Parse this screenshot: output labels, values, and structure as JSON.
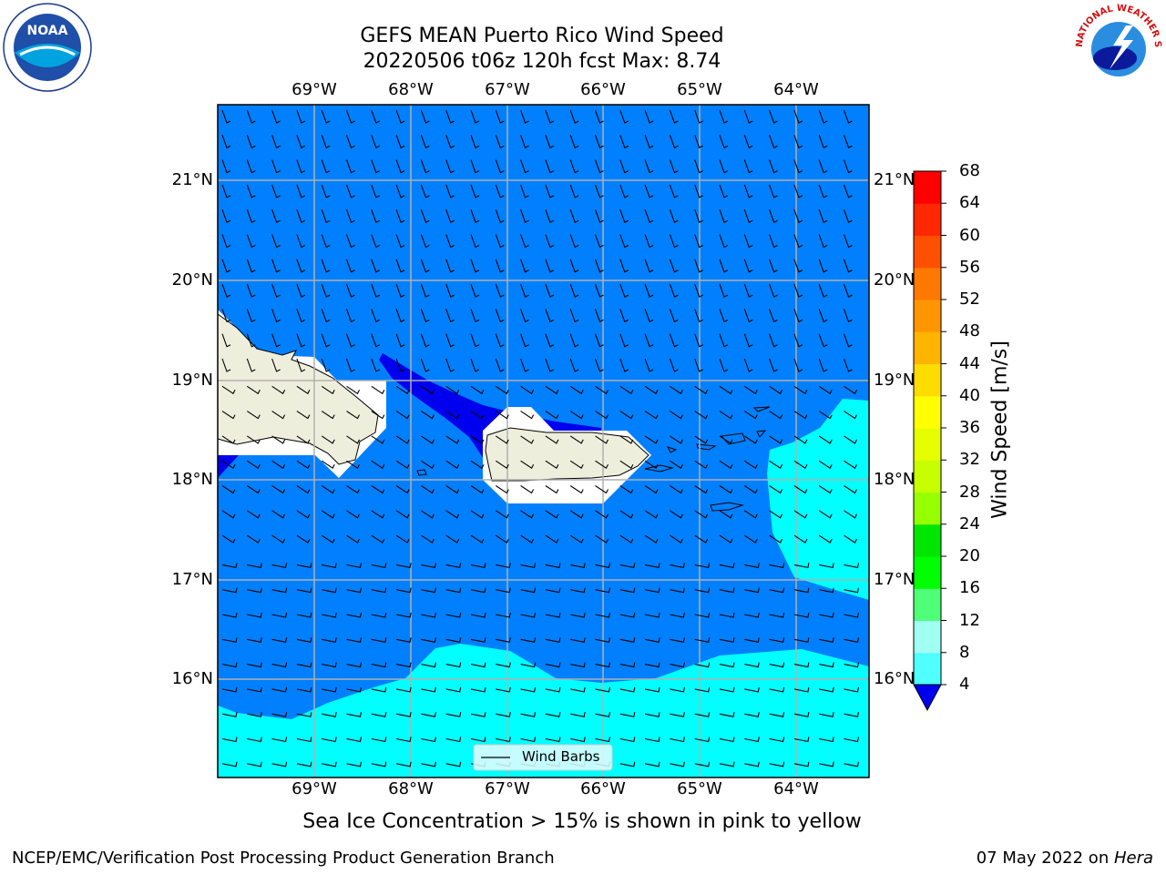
{
  "title": {
    "line1": "GEFS MEAN Puerto Rico Wind Speed",
    "line2": "20220506 t06z 120h fcst   Max: 8.74"
  },
  "map": {
    "lon_labels": [
      "69°W",
      "68°W",
      "67°W",
      "66°W",
      "65°W",
      "64°W"
    ],
    "lat_labels": [
      "21°N",
      "20°N",
      "19°N",
      "18°N",
      "17°N",
      "16°N"
    ],
    "legend_label": "Wind Barbs",
    "colors": {
      "ocean_4_8": "#0080ff",
      "band_below_4": "#0000ee",
      "band_8_12": "#00ffff",
      "land": "#eeeedc",
      "grid": "#b0b0b0"
    }
  },
  "colorbar": {
    "label": "Wind Speed [m/s]",
    "ticks": [
      "68",
      "64",
      "60",
      "56",
      "52",
      "48",
      "44",
      "40",
      "36",
      "32",
      "28",
      "24",
      "20",
      "16",
      "12",
      "8",
      "4"
    ],
    "colors": [
      "#ff0000",
      "#ff2800",
      "#ff5000",
      "#ff7800",
      "#ff9600",
      "#ffb400",
      "#ffdc00",
      "#ffff00",
      "#e6ff00",
      "#c8ff00",
      "#96ff00",
      "#00e600",
      "#00ff00",
      "#50ff78",
      "#a0fff0",
      "#50ffff",
      "#00ffff",
      "#0080ff"
    ],
    "extend_color": "#0000ee"
  },
  "footer": {
    "sea_ice_note": "Sea Ice Concentration > 15% is shown in pink to yellow",
    "branch": "NCEP/EMC/Verification Post Processing Product Generation Branch",
    "date": "07 May 2022 on ",
    "host": "Hera"
  },
  "logos": {
    "noaa": "NOAA",
    "nws_ring": "NATIONAL WEATHER SERVICE"
  }
}
